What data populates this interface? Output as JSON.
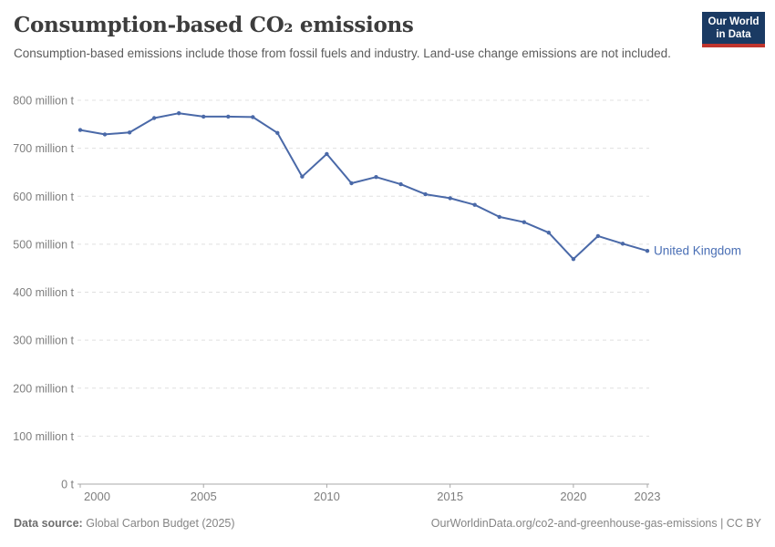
{
  "header": {
    "title": "Consumption-based CO₂ emissions",
    "subtitle": "Consumption-based emissions include those from fossil fuels and industry. Land-use change emissions are not included."
  },
  "logo": {
    "line1": "Our World",
    "line2": "in Data"
  },
  "chart_data": {
    "type": "line",
    "title": "Consumption-based CO₂ emissions",
    "xlabel": "",
    "ylabel": "",
    "unit": "million t",
    "grid": "horizontal dashed",
    "legend_position": "end-of-line label",
    "xlim": [
      2000,
      2023
    ],
    "ylim": [
      0,
      800
    ],
    "x": [
      2000,
      2001,
      2002,
      2003,
      2004,
      2005,
      2006,
      2007,
      2008,
      2009,
      2010,
      2011,
      2012,
      2013,
      2014,
      2015,
      2016,
      2017,
      2018,
      2019,
      2020,
      2021,
      2022,
      2023
    ],
    "series": [
      {
        "name": "United Kingdom",
        "color": "#4a69a8",
        "label_color": "#4a6fb5",
        "values": [
          738,
          729,
          733,
          763,
          773,
          766,
          766,
          765,
          732,
          641,
          688,
          627,
          640,
          625,
          604,
          596,
          582,
          557,
          546,
          524,
          469,
          517,
          501,
          486
        ]
      }
    ],
    "yticks": [
      {
        "value": 800,
        "label": "800 million t"
      },
      {
        "value": 700,
        "label": "700 million t"
      },
      {
        "value": 600,
        "label": "600 million t"
      },
      {
        "value": 500,
        "label": "500 million t"
      },
      {
        "value": 400,
        "label": "400 million t"
      },
      {
        "value": 300,
        "label": "300 million t"
      },
      {
        "value": 200,
        "label": "200 million t"
      },
      {
        "value": 100,
        "label": "100 million t"
      },
      {
        "value": 0,
        "label": "0 t"
      }
    ],
    "xticks": [
      {
        "value": 2000,
        "label": "2000"
      },
      {
        "value": 2005,
        "label": "2005"
      },
      {
        "value": 2010,
        "label": "2010"
      },
      {
        "value": 2015,
        "label": "2015"
      },
      {
        "value": 2020,
        "label": "2020"
      },
      {
        "value": 2023,
        "label": "2023"
      }
    ]
  },
  "footer": {
    "source_label": "Data source:",
    "source_value": "Global Carbon Budget (2025)",
    "attribution": "OurWorldinData.org/co2-and-greenhouse-gas-emissions | CC BY"
  },
  "colors": {
    "line_blue": "#4a69a8",
    "entity_label_blue": "#4a6fb5",
    "logo_navy": "#1a3a63",
    "logo_red": "#c0352d",
    "title_text": "#3d3d3d",
    "subtitle_text": "#5b5b5b",
    "axis_text": "#7e7e7e",
    "footer_text": "#858585",
    "gridline": "#e0e0e0",
    "axis_line": "#a8a8a8"
  }
}
